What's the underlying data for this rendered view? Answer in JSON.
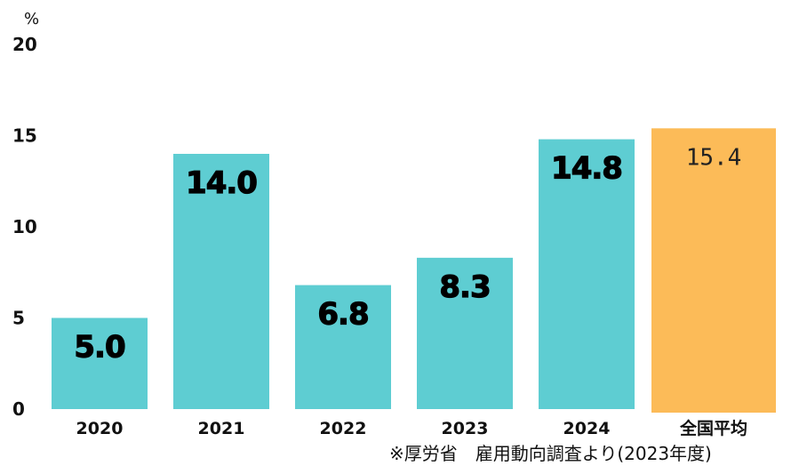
{
  "chart_data": {
    "type": "bar",
    "unit": "%",
    "categories": [
      "2020",
      "2021",
      "2022",
      "2023",
      "2024",
      "全国平均"
    ],
    "values": [
      5.0,
      14.0,
      6.8,
      8.3,
      14.8,
      15.4
    ],
    "value_labels": [
      "5.0",
      "14.0",
      "6.8",
      "8.3",
      "14.8",
      "15.4"
    ],
    "bar_colors": [
      "#5ecdd2",
      "#5ecdd2",
      "#5ecdd2",
      "#5ecdd2",
      "#5ecdd2",
      "#fcbb58"
    ],
    "ylim": [
      0,
      20
    ],
    "yticks": [
      "0",
      "5",
      "10",
      "15",
      "20"
    ],
    "grid": false,
    "note": "※厚労省　雇用動向調査より(2023年度)"
  }
}
